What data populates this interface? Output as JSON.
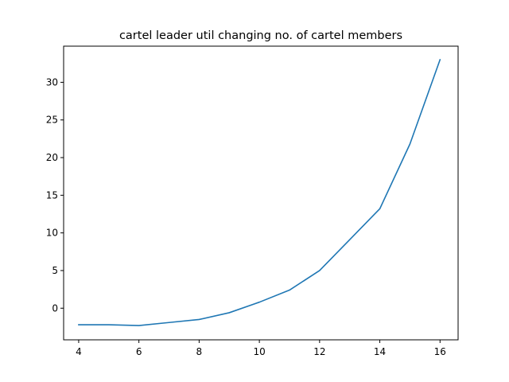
{
  "chart_data": {
    "type": "line",
    "title": "cartel leader util changing no. of cartel members",
    "xlabel": "",
    "ylabel": "",
    "xlim": [
      3.5,
      16.6
    ],
    "ylim": [
      -4.2,
      34.8
    ],
    "xticks": [
      4,
      6,
      8,
      10,
      12,
      14,
      16
    ],
    "yticks": [
      0,
      5,
      10,
      15,
      20,
      25,
      30
    ],
    "grid": false,
    "series": [
      {
        "color": "#1f77b4",
        "x": [
          4,
          5,
          6,
          7,
          8,
          9,
          10,
          11,
          12,
          13,
          14,
          15,
          16
        ],
        "y": [
          -2.2,
          -2.2,
          -2.3,
          -1.9,
          -1.5,
          -0.6,
          0.8,
          2.4,
          5.0,
          9.1,
          13.2,
          21.8,
          33.0
        ]
      }
    ]
  }
}
